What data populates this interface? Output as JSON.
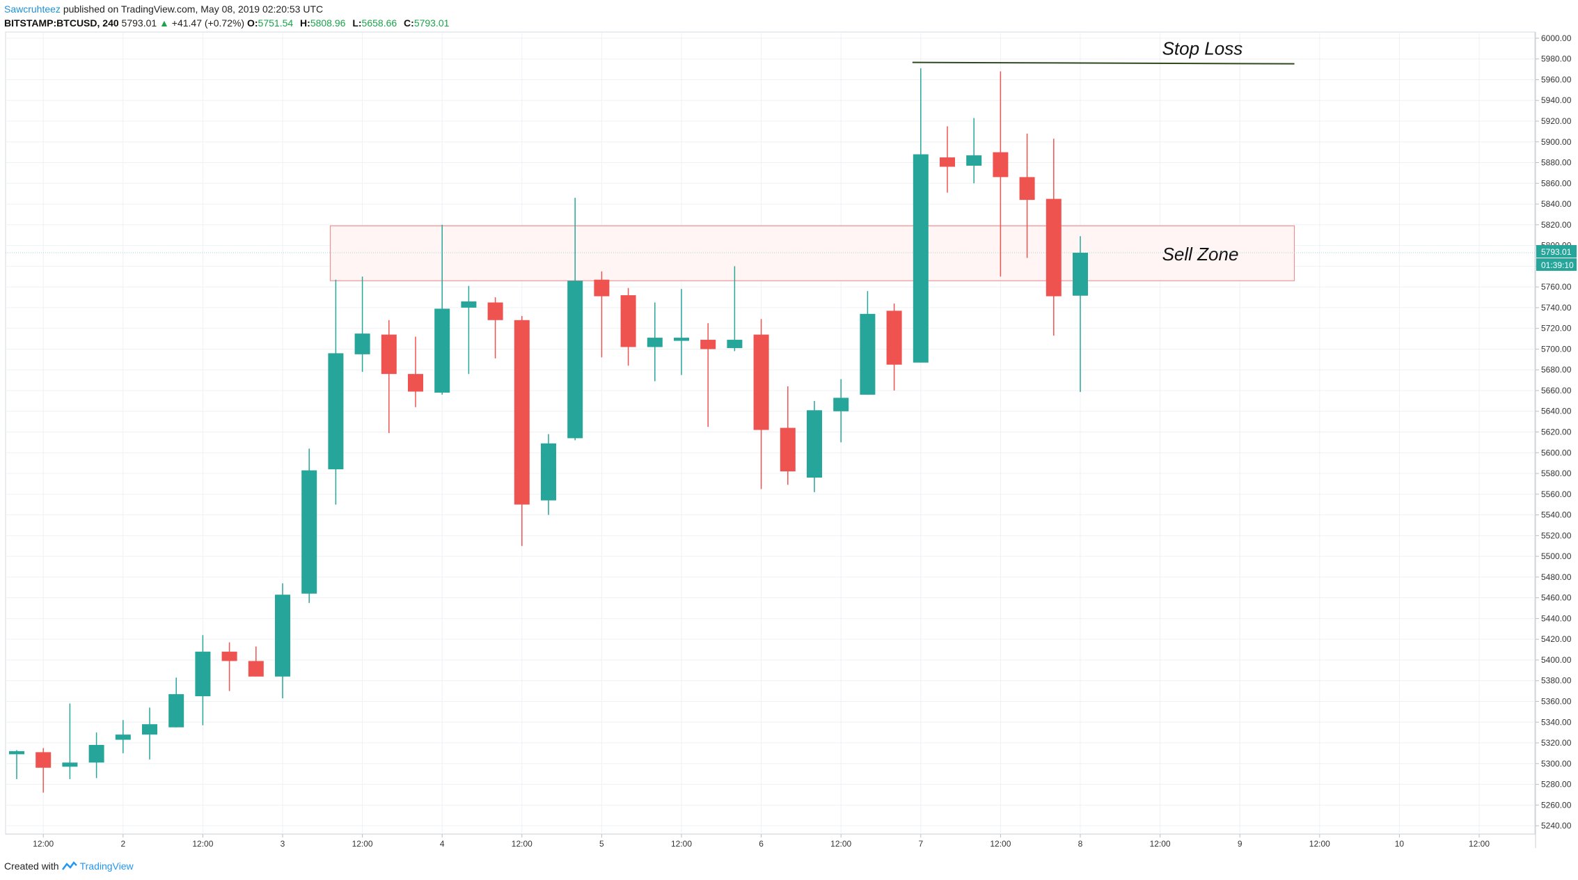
{
  "header": {
    "author": "Sawcruhteez",
    "published": "published on TradingView.com, May 08, 2019 02:20:53 UTC",
    "symbol": "BITSTAMP:BTCUSD, 240",
    "last": "5793.01",
    "change": "+41.47 (+0.72%)",
    "o_label": "O:",
    "o_value": "5751.54",
    "h_label": "H:",
    "h_value": "5808.96",
    "l_label": "L:",
    "l_value": "5658.66",
    "c_label": "C:",
    "c_value": "5793.01"
  },
  "footer": {
    "created_with": "Created with",
    "brand": "TradingView"
  },
  "colors": {
    "bull": "#26a69a",
    "bear": "#ef5350",
    "grid": "#eef1f4",
    "zone_border": "#f08080",
    "zone_fill": "#fff5f5",
    "stop_line": "#2e4a1e",
    "price_line": "#26a69a"
  },
  "chart_data": {
    "type": "candlestick",
    "timeframe": "240",
    "x_ticks": [
      "12:00",
      "2",
      "12:00",
      "3",
      "12:00",
      "4",
      "12:00",
      "5",
      "12:00",
      "6",
      "12:00",
      "7",
      "12:00",
      "8",
      "12:00",
      "9",
      "12:00",
      "10",
      "12:00"
    ],
    "y_ticks": [
      6000.0,
      5980.0,
      5960.0,
      5940.0,
      5920.0,
      5900.0,
      5880.0,
      5860.0,
      5840.0,
      5820.0,
      5800.0,
      5780.0,
      5760.0,
      5740.0,
      5720.0,
      5700.0,
      5680.0,
      5660.0,
      5640.0,
      5620.0,
      5600.0,
      5580.0,
      5560.0,
      5540.0,
      5520.0,
      5500.0,
      5480.0,
      5460.0,
      5440.0,
      5420.0,
      5400.0,
      5380.0,
      5360.0,
      5340.0,
      5320.0,
      5300.0,
      5280.0,
      5260.0,
      5240.0
    ],
    "ylim": [
      5232,
      6006
    ],
    "current_price": "5793.01",
    "countdown": "01:39:10",
    "candles": [
      {
        "o": 5309,
        "h": 5313,
        "l": 5285,
        "c": 5312
      },
      {
        "o": 5311,
        "h": 5315,
        "l": 5272,
        "c": 5296
      },
      {
        "o": 5297,
        "h": 5358,
        "l": 5285,
        "c": 5301
      },
      {
        "o": 5301,
        "h": 5330,
        "l": 5286,
        "c": 5318
      },
      {
        "o": 5323,
        "h": 5342,
        "l": 5310,
        "c": 5328
      },
      {
        "o": 5328,
        "h": 5354,
        "l": 5304,
        "c": 5338
      },
      {
        "o": 5335,
        "h": 5383,
        "l": 5335,
        "c": 5367
      },
      {
        "o": 5365,
        "h": 5424,
        "l": 5337,
        "c": 5408
      },
      {
        "o": 5408,
        "h": 5417,
        "l": 5370,
        "c": 5399
      },
      {
        "o": 5399,
        "h": 5413,
        "l": 5384,
        "c": 5384
      },
      {
        "o": 5384,
        "h": 5474,
        "l": 5363,
        "c": 5463
      },
      {
        "o": 5464,
        "h": 5604,
        "l": 5455,
        "c": 5583
      },
      {
        "o": 5584,
        "h": 5767,
        "l": 5550,
        "c": 5696
      },
      {
        "o": 5695,
        "h": 5770,
        "l": 5678,
        "c": 5715
      },
      {
        "o": 5714,
        "h": 5728,
        "l": 5619,
        "c": 5676
      },
      {
        "o": 5676,
        "h": 5712,
        "l": 5644,
        "c": 5659
      },
      {
        "o": 5658,
        "h": 5820,
        "l": 5656,
        "c": 5739
      },
      {
        "o": 5740,
        "h": 5761,
        "l": 5676,
        "c": 5746
      },
      {
        "o": 5745,
        "h": 5750,
        "l": 5691,
        "c": 5728
      },
      {
        "o": 5728,
        "h": 5732,
        "l": 5510,
        "c": 5550
      },
      {
        "o": 5554,
        "h": 5618,
        "l": 5540,
        "c": 5609
      },
      {
        "o": 5614,
        "h": 5846,
        "l": 5612,
        "c": 5766
      },
      {
        "o": 5767,
        "h": 5775,
        "l": 5692,
        "c": 5751
      },
      {
        "o": 5752,
        "h": 5759,
        "l": 5684,
        "c": 5702
      },
      {
        "o": 5702,
        "h": 5745,
        "l": 5669,
        "c": 5711
      },
      {
        "o": 5708,
        "h": 5758,
        "l": 5675,
        "c": 5711
      },
      {
        "o": 5709,
        "h": 5725,
        "l": 5625,
        "c": 5700
      },
      {
        "o": 5701,
        "h": 5780,
        "l": 5698,
        "c": 5709
      },
      {
        "o": 5714,
        "h": 5729,
        "l": 5565,
        "c": 5622
      },
      {
        "o": 5624,
        "h": 5664,
        "l": 5569,
        "c": 5582
      },
      {
        "o": 5576,
        "h": 5650,
        "l": 5562,
        "c": 5641
      },
      {
        "o": 5640,
        "h": 5671,
        "l": 5610,
        "c": 5653
      },
      {
        "o": 5656,
        "h": 5756,
        "l": 5656,
        "c": 5734
      },
      {
        "o": 5737,
        "h": 5744,
        "l": 5660,
        "c": 5685
      },
      {
        "o": 5687,
        "h": 5971,
        "l": 5687,
        "c": 5888
      },
      {
        "o": 5885,
        "h": 5915,
        "l": 5851,
        "c": 5876
      },
      {
        "o": 5877,
        "h": 5923,
        "l": 5860,
        "c": 5887
      },
      {
        "o": 5890,
        "h": 5968,
        "l": 5770,
        "c": 5866
      },
      {
        "o": 5866,
        "h": 5908,
        "l": 5788,
        "c": 5844
      },
      {
        "o": 5845,
        "h": 5903,
        "l": 5713,
        "c": 5751
      },
      {
        "o": 5751.54,
        "h": 5808.96,
        "l": 5658.66,
        "c": 5793.01
      }
    ],
    "annotations": [
      {
        "type": "hline",
        "label": "Stop Loss",
        "y": 5976,
        "from_candle": 34,
        "to_candle": 48
      },
      {
        "type": "zone",
        "label": "Sell Zone",
        "y_top": 5819,
        "y_bottom": 5766,
        "from_candle": 12,
        "to_candle": 48
      }
    ]
  }
}
